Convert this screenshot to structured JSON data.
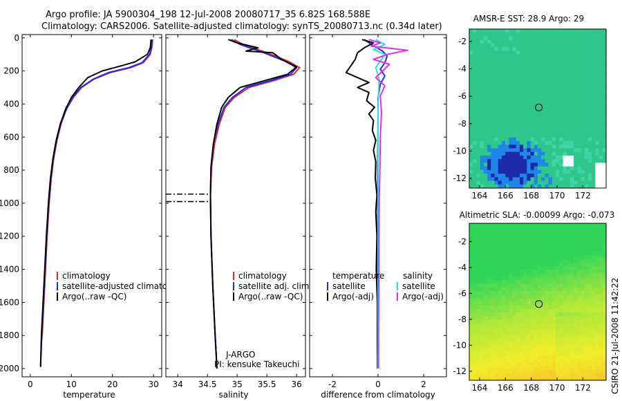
{
  "figure": {
    "title_line1": "Argo profile: JA 5900304_198 12-Jul-2008 20080717_35 6.82S 168.588E",
    "title_line2": "Climatology: CARS2006. Satellite-adjusted climatology: synTS_20080713.nc (0.34d later)",
    "side_stamp": "CSIRO 21-Jul-2008 11:42:22",
    "colors": {
      "climatology": "#e8262b",
      "satellite": "#1a2ee6",
      "argo": "#000000",
      "sal_satellite": "#22e0e8",
      "sal_argo": "#e82ae6",
      "map_marker": "#000000"
    }
  },
  "chart_data": [
    {
      "id": "temperature_profile",
      "type": "line",
      "xlabel": "temperature",
      "ylabel": "",
      "xlim": [
        -2,
        32
      ],
      "ylim": [
        2050,
        -20
      ],
      "xticks": [
        0,
        10,
        20,
        30
      ],
      "yticks": [
        0,
        200,
        400,
        600,
        800,
        1000,
        1200,
        1400,
        1600,
        1800,
        2000
      ],
      "legend": [
        "climatology",
        "satellite-adjusted climatolog",
        "Argo(..raw -QC)"
      ],
      "series": [
        {
          "name": "climatology",
          "color": "#e8262b",
          "points": [
            [
              29.8,
              10
            ],
            [
              29.6,
              60
            ],
            [
              29.2,
              100
            ],
            [
              27.5,
              150
            ],
            [
              24.5,
              180
            ],
            [
              19.5,
              210
            ],
            [
              15.5,
              250
            ],
            [
              12.5,
              300
            ],
            [
              10.5,
              360
            ],
            [
              8.8,
              430
            ],
            [
              7.5,
              520
            ],
            [
              6.5,
              620
            ],
            [
              5.7,
              730
            ],
            [
              5.1,
              850
            ],
            [
              4.6,
              1000
            ],
            [
              4.1,
              1200
            ],
            [
              3.7,
              1400
            ],
            [
              3.3,
              1600
            ],
            [
              2.9,
              1800
            ],
            [
              2.6,
              1850
            ]
          ]
        },
        {
          "name": "satellite",
          "color": "#1a2ee6",
          "points": [
            [
              29.7,
              10
            ],
            [
              29.5,
              60
            ],
            [
              29.0,
              100
            ],
            [
              27.2,
              150
            ],
            [
              24.0,
              180
            ],
            [
              19.0,
              210
            ],
            [
              15.3,
              250
            ],
            [
              12.3,
              300
            ],
            [
              10.3,
              360
            ],
            [
              8.8,
              430
            ],
            [
              7.4,
              520
            ],
            [
              6.4,
              620
            ],
            [
              5.6,
              730
            ],
            [
              5.0,
              850
            ],
            [
              4.5,
              1000
            ],
            [
              4.0,
              1200
            ],
            [
              3.6,
              1400
            ],
            [
              3.2,
              1600
            ],
            [
              2.8,
              1800
            ],
            [
              2.5,
              1990
            ]
          ]
        },
        {
          "name": "argo",
          "color": "#000000",
          "points": [
            [
              29.4,
              10
            ],
            [
              29.2,
              60
            ],
            [
              28.5,
              100
            ],
            [
              25.5,
              145
            ],
            [
              22.0,
              170
            ],
            [
              17.5,
              200
            ],
            [
              14.0,
              240
            ],
            [
              11.8,
              300
            ],
            [
              10.0,
              360
            ],
            [
              8.6,
              430
            ],
            [
              7.3,
              520
            ],
            [
              6.3,
              620
            ],
            [
              5.5,
              730
            ],
            [
              4.9,
              850
            ],
            [
              4.4,
              1000
            ],
            [
              3.9,
              1200
            ],
            [
              3.5,
              1400
            ],
            [
              3.1,
              1600
            ],
            [
              2.7,
              1800
            ],
            [
              2.5,
              1990
            ]
          ]
        }
      ]
    },
    {
      "id": "salinity_profile",
      "type": "line",
      "xlabel": "salinity",
      "ylabel": "",
      "xlim": [
        33.8,
        36.15
      ],
      "ylim": [
        2050,
        -20
      ],
      "xticks": [
        34,
        34.5,
        35,
        35.5,
        36
      ],
      "legend": [
        "climatology",
        "satellite adj. clim.",
        "Argo(..raw -QC)"
      ],
      "annotation": [
        "J-ARGO",
        "PI: kensuke Takeuchi"
      ],
      "flag_depths": [
        945,
        990
      ],
      "series": [
        {
          "name": "climatology",
          "color": "#e8262b",
          "points": [
            [
              34.95,
              10
            ],
            [
              35.1,
              40
            ],
            [
              35.5,
              90
            ],
            [
              35.85,
              140
            ],
            [
              36.05,
              180
            ],
            [
              35.95,
              220
            ],
            [
              35.6,
              260
            ],
            [
              35.2,
              300
            ],
            [
              34.95,
              360
            ],
            [
              34.8,
              420
            ],
            [
              34.7,
              520
            ],
            [
              34.62,
              640
            ],
            [
              34.57,
              780
            ],
            [
              34.55,
              950
            ],
            [
              34.56,
              1200
            ],
            [
              34.59,
              1500
            ],
            [
              34.63,
              1800
            ],
            [
              34.66,
              2000
            ]
          ]
        },
        {
          "name": "satellite",
          "color": "#1a2ee6",
          "points": [
            [
              34.9,
              10
            ],
            [
              35.05,
              40
            ],
            [
              35.45,
              90
            ],
            [
              35.8,
              140
            ],
            [
              36.0,
              180
            ],
            [
              35.9,
              220
            ],
            [
              35.55,
              260
            ],
            [
              35.15,
              300
            ],
            [
              34.92,
              360
            ],
            [
              34.78,
              420
            ],
            [
              34.68,
              520
            ],
            [
              34.6,
              640
            ],
            [
              34.56,
              780
            ],
            [
              34.55,
              950
            ],
            [
              34.56,
              1200
            ],
            [
              34.59,
              1500
            ],
            [
              34.63,
              1800
            ],
            [
              34.66,
              2000
            ]
          ]
        },
        {
          "name": "argo",
          "color": "#000000",
          "points": [
            [
              34.85,
              10
            ],
            [
              35.0,
              30
            ],
            [
              35.35,
              60
            ],
            [
              35.15,
              80
            ],
            [
              35.6,
              90
            ],
            [
              35.75,
              130
            ],
            [
              36.0,
              175
            ],
            [
              35.85,
              220
            ],
            [
              35.45,
              260
            ],
            [
              35.05,
              300
            ],
            [
              34.85,
              360
            ],
            [
              34.74,
              420
            ],
            [
              34.66,
              520
            ],
            [
              34.6,
              640
            ],
            [
              34.56,
              780
            ],
            [
              34.55,
              950
            ],
            [
              34.56,
              1200
            ],
            [
              34.59,
              1500
            ],
            [
              34.63,
              1800
            ],
            [
              34.66,
              2000
            ]
          ]
        }
      ]
    },
    {
      "id": "difference_profile",
      "type": "line",
      "xlabel": "difference from climatology",
      "ylabel": "",
      "xlim": [
        -3,
        3
      ],
      "ylim": [
        2050,
        -20
      ],
      "xticks": [
        -2,
        0,
        2
      ],
      "legend_titles": [
        "temperature",
        "salinity"
      ],
      "legend": [
        "satellite",
        "Argo(-adj)",
        "satellite",
        "Argo(-adj)"
      ],
      "series": [
        {
          "name": "temperature satellite",
          "color": "#1a2ee6",
          "points": [
            [
              -0.6,
              10
            ],
            [
              -0.3,
              40
            ],
            [
              0.2,
              80
            ],
            [
              0.4,
              110
            ],
            [
              0.3,
              150
            ],
            [
              0.1,
              190
            ],
            [
              0.3,
              230
            ],
            [
              0.1,
              280
            ],
            [
              0.0,
              360
            ],
            [
              0.0,
              500
            ],
            [
              -0.02,
              800
            ],
            [
              -0.02,
              1200
            ],
            [
              -0.02,
              1600
            ],
            [
              -0.01,
              2000
            ]
          ]
        },
        {
          "name": "temperature Argo(-adj)",
          "color": "#000000",
          "points": [
            [
              -0.7,
              10
            ],
            [
              -0.2,
              30
            ],
            [
              -0.6,
              60
            ],
            [
              -0.9,
              90
            ],
            [
              -1.0,
              130
            ],
            [
              -1.2,
              170
            ],
            [
              -1.4,
              210
            ],
            [
              -0.9,
              240
            ],
            [
              -0.4,
              270
            ],
            [
              -0.9,
              300
            ],
            [
              -0.4,
              330
            ],
            [
              -0.5,
              380
            ],
            [
              -0.15,
              420
            ],
            [
              -0.4,
              460
            ],
            [
              -0.2,
              500
            ],
            [
              -0.25,
              560
            ],
            [
              -0.1,
              620
            ],
            [
              -0.2,
              680
            ],
            [
              -0.1,
              750
            ],
            [
              -0.12,
              850
            ],
            [
              -0.05,
              950
            ],
            [
              -0.1,
              1050
            ],
            [
              -0.05,
              1200
            ],
            [
              -0.08,
              1400
            ],
            [
              -0.03,
              1600
            ],
            [
              -0.03,
              1800
            ],
            [
              -0.02,
              2000
            ]
          ]
        },
        {
          "name": "salinity satellite",
          "color": "#22e0e8",
          "points": [
            [
              -0.1,
              10
            ],
            [
              0.3,
              40
            ],
            [
              -0.2,
              70
            ],
            [
              0.3,
              100
            ],
            [
              0.1,
              140
            ],
            [
              -0.1,
              180
            ],
            [
              0.05,
              250
            ],
            [
              0.0,
              400
            ],
            [
              0.0,
              800
            ],
            [
              0.0,
              1200
            ],
            [
              0.0,
              1600
            ],
            [
              0.0,
              2000
            ]
          ]
        },
        {
          "name": "salinity Argo(-adj)",
          "color": "#e82ae6",
          "points": [
            [
              -0.4,
              10
            ],
            [
              0.1,
              30
            ],
            [
              -0.3,
              50
            ],
            [
              1.3,
              75
            ],
            [
              0.4,
              100
            ],
            [
              -0.2,
              130
            ],
            [
              0.5,
              160
            ],
            [
              0.2,
              200
            ],
            [
              -0.1,
              240
            ],
            [
              0.3,
              290
            ],
            [
              0.1,
              350
            ],
            [
              0.15,
              450
            ],
            [
              0.1,
              600
            ],
            [
              0.08,
              800
            ],
            [
              0.05,
              1000
            ],
            [
              0.04,
              1200
            ],
            [
              0.03,
              1500
            ],
            [
              0.02,
              1800
            ],
            [
              0.02,
              2000
            ]
          ]
        }
      ]
    },
    {
      "id": "sst_map",
      "type": "heatmap",
      "title": "AMSR-E SST: 28.9  Argo: 29",
      "xlim": [
        163.2,
        173.8
      ],
      "ylim": [
        -12.7,
        -1.1
      ],
      "xticks": [
        164,
        166,
        168,
        170,
        172
      ],
      "yticks": [
        -2,
        -4,
        -6,
        -8,
        -10,
        -12
      ],
      "marker": [
        168.588,
        -6.82
      ],
      "colors": {
        "base": "#2fc78c",
        "cool": "#3fd3a8",
        "cold": "#1f86e8",
        "coldest": "#1a2aa8",
        "missing": "#ffffff"
      }
    },
    {
      "id": "sla_map",
      "type": "heatmap",
      "title": "Altimetric SLA: -0.00099  Argo: -0.073",
      "xlim": [
        163.2,
        173.8
      ],
      "ylim": [
        -12.7,
        -0.6
      ],
      "xticks": [
        164,
        166,
        168,
        170,
        172
      ],
      "yticks": [
        -2,
        -4,
        -6,
        -8,
        -10,
        -12
      ],
      "marker": [
        168.588,
        -6.82
      ],
      "colors": {
        "high": "#2fd65a",
        "mid": "#aee83a",
        "low": "#f2ee2a",
        "lowest": "#f5c62a"
      }
    }
  ]
}
